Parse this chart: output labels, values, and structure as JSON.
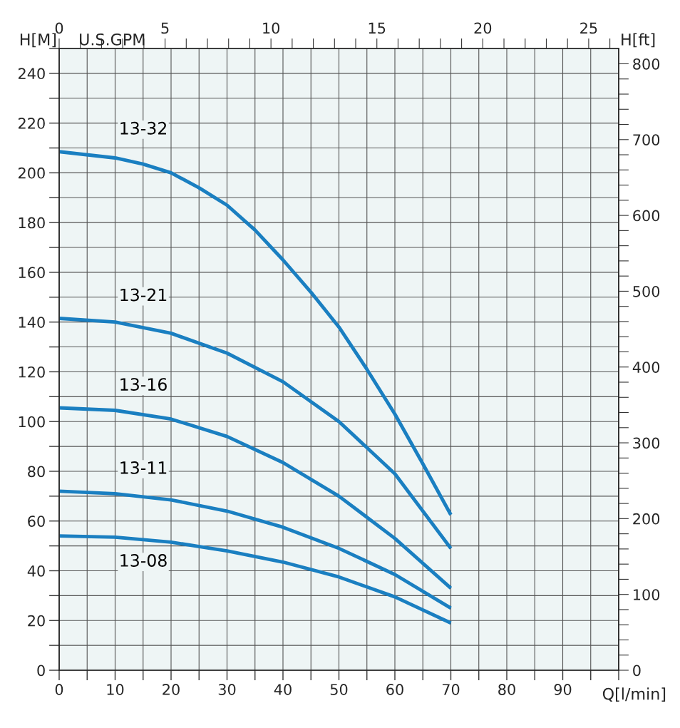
{
  "chart_data": {
    "type": "line",
    "xlabel": "Q[l/min]",
    "ylabel": "H[M]",
    "y2label": "H[ft]",
    "x2label": "U.S.GPM",
    "x": [
      0,
      10,
      20,
      30,
      40,
      50,
      60,
      70
    ],
    "series": [
      {
        "name": "13-32",
        "color": "#1a7fc1",
        "x": [
          0,
          10,
          15,
          20,
          25,
          30,
          35,
          40,
          45,
          50,
          55,
          60,
          65,
          70
        ],
        "values": [
          208.5,
          206,
          203.5,
          200,
          194,
          187,
          177,
          165,
          152,
          138,
          121,
          103,
          83,
          62.5
        ]
      },
      {
        "name": "13-21",
        "color": "#1a7fc1",
        "values": [
          141.5,
          140,
          135.5,
          127.5,
          116,
          100,
          79,
          49
        ]
      },
      {
        "name": "13-16",
        "color": "#1a7fc1",
        "values": [
          105.5,
          104.5,
          101,
          94,
          83.5,
          70,
          53,
          33
        ]
      },
      {
        "name": "13-11",
        "color": "#1a7fc1",
        "values": [
          72,
          71,
          68.5,
          64,
          57.5,
          49,
          38.5,
          25
        ]
      },
      {
        "name": "13-08",
        "color": "#1a7fc1",
        "values": [
          54,
          53.5,
          51.5,
          48,
          43.5,
          37.5,
          29.5,
          19
        ]
      }
    ],
    "xlim": [
      0,
      100
    ],
    "ylim": [
      0,
      250
    ],
    "y2lim": [
      0,
      820.2
    ],
    "x2lim": [
      0,
      26.417
    ],
    "xticks": [
      0,
      {
        "value": 5,
        "label": null
      },
      10,
      {
        "value": 15,
        "label": null
      },
      20,
      {
        "value": 25,
        "label": null
      },
      30,
      {
        "value": 35,
        "label": null
      },
      40,
      {
        "value": 45,
        "label": null
      },
      50,
      {
        "value": 55,
        "label": null
      },
      60,
      {
        "value": 65,
        "label": null
      },
      70,
      {
        "value": 75,
        "label": null
      },
      80,
      {
        "value": 85,
        "label": null
      },
      90,
      {
        "value": 95,
        "label": null
      },
      {
        "value": 100,
        "label": null
      }
    ],
    "yticks": [
      0,
      {
        "value": 10,
        "label": null
      },
      20,
      {
        "value": 30,
        "label": null
      },
      40,
      {
        "value": 50,
        "label": null
      },
      60,
      {
        "value": 70,
        "label": null
      },
      80,
      {
        "value": 90,
        "label": null
      },
      100,
      {
        "value": 110,
        "label": null
      },
      120,
      {
        "value": 130,
        "label": null
      },
      140,
      {
        "value": 150,
        "label": null
      },
      160,
      {
        "value": 170,
        "label": null
      },
      180,
      {
        "value": 190,
        "label": null
      },
      200,
      {
        "value": 210,
        "label": null
      },
      220,
      {
        "value": 230,
        "label": null
      },
      240,
      {
        "value": 250,
        "label": null
      }
    ],
    "y2ticks": [
      0,
      {
        "value": 20,
        "label": null
      },
      {
        "value": 40,
        "label": null
      },
      {
        "value": 60,
        "label": null
      },
      {
        "value": 80,
        "label": null
      },
      100,
      {
        "value": 120,
        "label": null
      },
      {
        "value": 140,
        "label": null
      },
      {
        "value": 160,
        "label": null
      },
      {
        "value": 180,
        "label": null
      },
      200,
      {
        "value": 220,
        "label": null
      },
      {
        "value": 240,
        "label": null
      },
      {
        "value": 260,
        "label": null
      },
      {
        "value": 280,
        "label": null
      },
      300,
      {
        "value": 320,
        "label": null
      },
      {
        "value": 340,
        "label": null
      },
      {
        "value": 360,
        "label": null
      },
      {
        "value": 380,
        "label": null
      },
      400,
      {
        "value": 420,
        "label": null
      },
      {
        "value": 440,
        "label": null
      },
      {
        "value": 460,
        "label": null
      },
      {
        "value": 480,
        "label": null
      },
      500,
      {
        "value": 520,
        "label": null
      },
      {
        "value": 540,
        "label": null
      },
      {
        "value": 560,
        "label": null
      },
      {
        "value": 580,
        "label": null
      },
      600,
      {
        "value": 620,
        "label": null
      },
      {
        "value": 640,
        "label": null
      },
      {
        "value": 660,
        "label": null
      },
      {
        "value": 680,
        "label": null
      },
      700,
      {
        "value": 720,
        "label": null
      },
      {
        "value": 740,
        "label": null
      },
      {
        "value": 760,
        "label": null
      },
      {
        "value": 780,
        "label": null
      },
      800
    ],
    "x2ticks": [
      0,
      {
        "value": 1,
        "label": null
      },
      {
        "value": 2,
        "label": null
      },
      {
        "value": 3,
        "label": null
      },
      {
        "value": 4,
        "label": null
      },
      5,
      {
        "value": 6,
        "label": null
      },
      {
        "value": 7,
        "label": null
      },
      {
        "value": 8,
        "label": null
      },
      {
        "value": 9,
        "label": null
      },
      10,
      {
        "value": 11,
        "label": null
      },
      {
        "value": 12,
        "label": null
      },
      {
        "value": 13,
        "label": null
      },
      {
        "value": 14,
        "label": null
      },
      15,
      {
        "value": 16,
        "label": null
      },
      {
        "value": 17,
        "label": null
      },
      {
        "value": 18,
        "label": null
      },
      {
        "value": 19,
        "label": null
      },
      20,
      {
        "value": 21,
        "label": null
      },
      {
        "value": 22,
        "label": null
      },
      {
        "value": 23,
        "label": null
      },
      {
        "value": 24,
        "label": null
      },
      25,
      {
        "value": 26,
        "label": null
      }
    ],
    "grid": true,
    "line_style": "solid",
    "marker": "none",
    "legend": false
  }
}
